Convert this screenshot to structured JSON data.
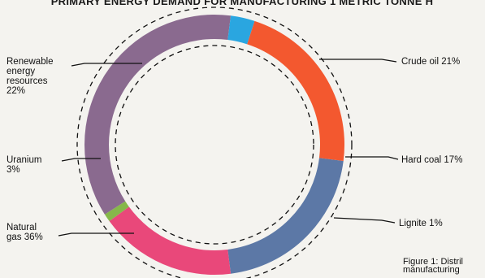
{
  "title": "PRIMARY ENERGY DEMAND FOR MANUFACTURING 1 METRIC TONNE H",
  "caption_lines": [
    "Figure 1: Distril",
    "manufacturing"
  ],
  "chart_data": {
    "type": "pie",
    "title": "PRIMARY ENERGY DEMAND FOR MANUFACTURING 1 METRIC TONNE H",
    "slices": [
      {
        "key": "crude_oil",
        "value": 21,
        "color": "#5c78a6",
        "label_lines": [
          "Crude oil 21%"
        ]
      },
      {
        "key": "hard_coal",
        "value": 17,
        "color": "#e9487a",
        "label_lines": [
          "Hard coal 17%"
        ]
      },
      {
        "key": "lignite",
        "value": 1,
        "color": "#86b84a",
        "label_lines": [
          "Lignite 1%"
        ]
      },
      {
        "key": "natural_gas",
        "value": 36,
        "color": "#8a6a8f",
        "label_lines": [
          "Natural",
          "gas 36%"
        ]
      },
      {
        "key": "uranium",
        "value": 3,
        "color": "#2aa6e0",
        "label_lines": [
          "Uranium",
          "3%"
        ]
      },
      {
        "key": "renewable",
        "value": 22,
        "color": "#f3582f",
        "label_lines": [
          "Renewable",
          "energy",
          "resources",
          "22%"
        ]
      }
    ],
    "start_value": 27,
    "unit": "%"
  }
}
